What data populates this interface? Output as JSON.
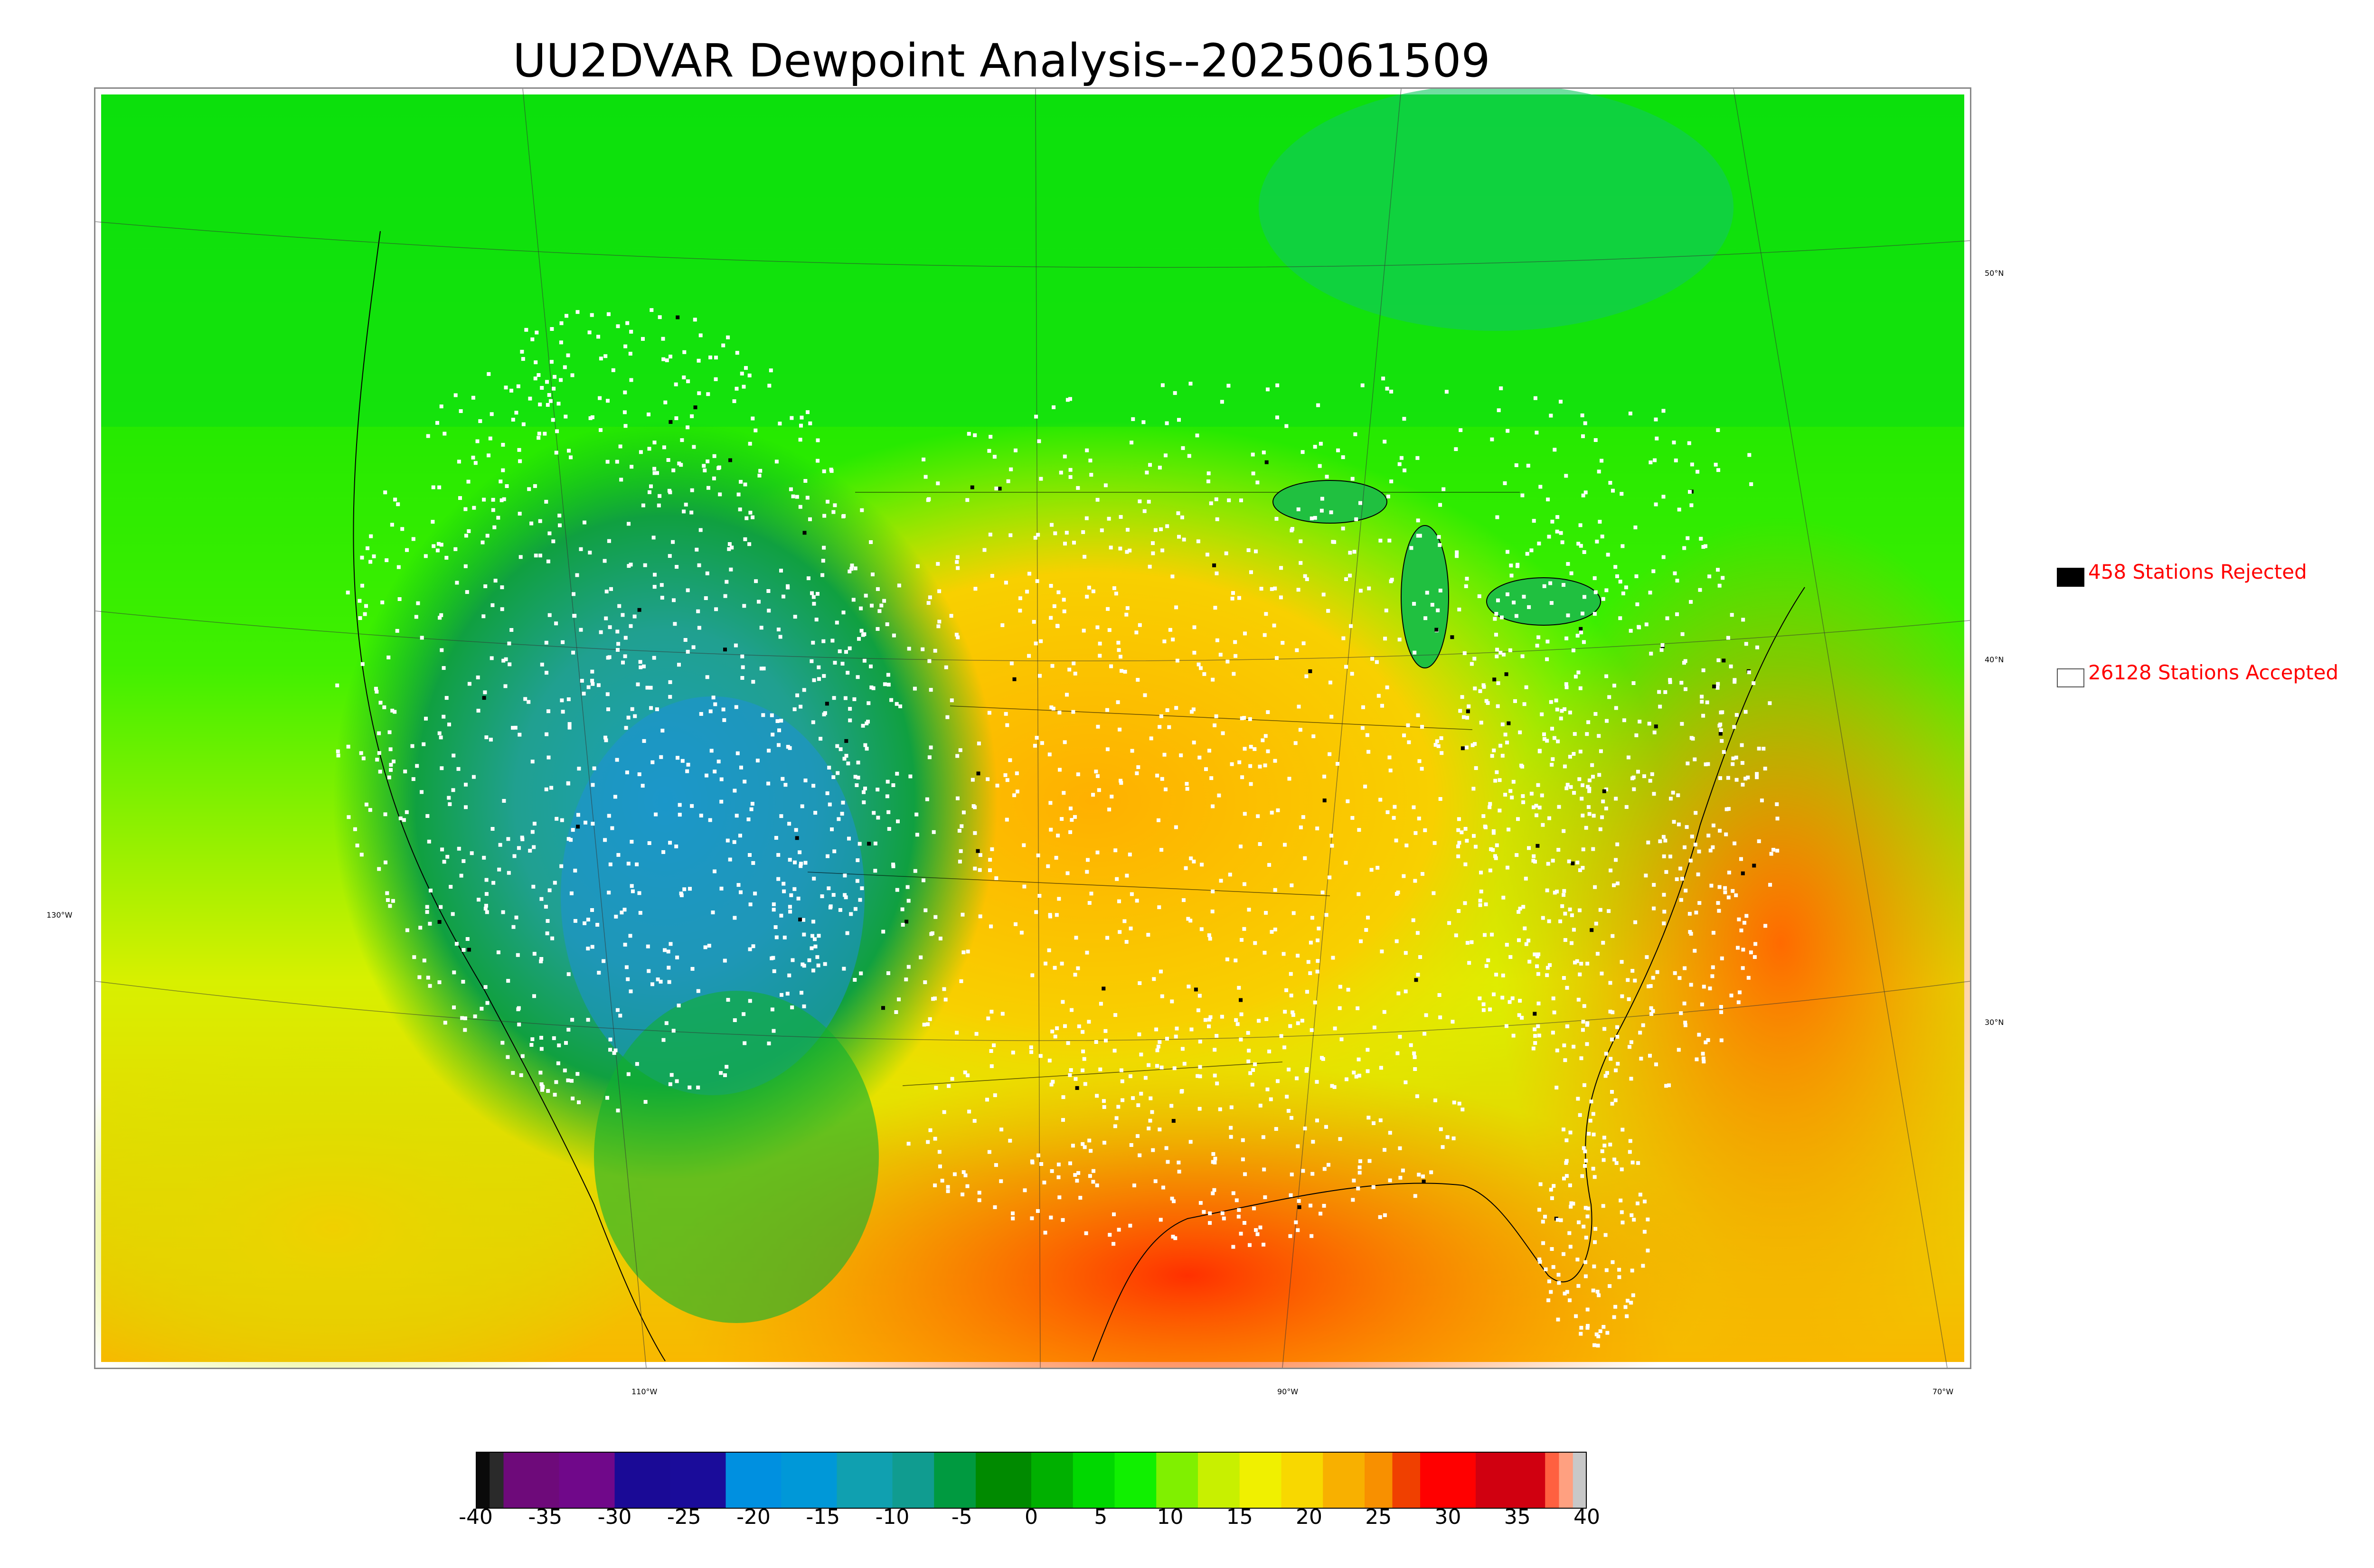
{
  "title": "UU2DVAR Dewpoint Analysis--2025061509",
  "map": {
    "lon_labels": [
      "110°W",
      "90°W",
      "70°W"
    ],
    "lat_labels": [
      "50°N",
      "40°N",
      "30°N"
    ],
    "west_label": "130°W"
  },
  "legend": {
    "rejected": {
      "label": "458 Stations Rejected",
      "color": "#000000"
    },
    "accepted": {
      "label": "26128 Stations Accepted",
      "color": "#ffffff"
    }
  },
  "colorbar": {
    "ticks": [
      "-40",
      "-35",
      "-30",
      "-25",
      "-20",
      "-15",
      "-10",
      "-5",
      "0",
      "5",
      "10",
      "15",
      "20",
      "25",
      "30",
      "35",
      "40"
    ],
    "range": [
      -40,
      40
    ],
    "colors": [
      {
        "from": -40,
        "to": -39,
        "color": "#0a0a0a"
      },
      {
        "from": -39,
        "to": -38,
        "color": "#2a2a2a"
      },
      {
        "from": -38,
        "to": -34,
        "color": "#6e0a7a"
      },
      {
        "from": -34,
        "to": -30,
        "color": "#70088a"
      },
      {
        "from": -30,
        "to": -26,
        "color": "#1a0a96"
      },
      {
        "from": -26,
        "to": -22,
        "color": "#1a0c9a"
      },
      {
        "from": -22,
        "to": -18,
        "color": "#0090e0"
      },
      {
        "from": -18,
        "to": -14,
        "color": "#0098d8"
      },
      {
        "from": -14,
        "to": -10,
        "color": "#10a0b0"
      },
      {
        "from": -10,
        "to": -7,
        "color": "#109c90"
      },
      {
        "from": -7,
        "to": -4,
        "color": "#009a40"
      },
      {
        "from": -4,
        "to": 0,
        "color": "#008a00"
      },
      {
        "from": 0,
        "to": 3,
        "color": "#00b000"
      },
      {
        "from": 3,
        "to": 6,
        "color": "#00d800"
      },
      {
        "from": 6,
        "to": 9,
        "color": "#10f000"
      },
      {
        "from": 9,
        "to": 12,
        "color": "#80f000"
      },
      {
        "from": 12,
        "to": 15,
        "color": "#c8f000"
      },
      {
        "from": 15,
        "to": 18,
        "color": "#f0f000"
      },
      {
        "from": 18,
        "to": 21,
        "color": "#f8d800"
      },
      {
        "from": 21,
        "to": 24,
        "color": "#f8b000"
      },
      {
        "from": 24,
        "to": 26,
        "color": "#f89000"
      },
      {
        "from": 26,
        "to": 28,
        "color": "#f04000"
      },
      {
        "from": 28,
        "to": 32,
        "color": "#ff0000"
      },
      {
        "from": 32,
        "to": 37,
        "color": "#d00010"
      },
      {
        "from": 37,
        "to": 38,
        "color": "#ff6040"
      },
      {
        "from": 38,
        "to": 39,
        "color": "#ffa080"
      },
      {
        "from": 39,
        "to": 40,
        "color": "#c8c8c8"
      }
    ]
  }
}
